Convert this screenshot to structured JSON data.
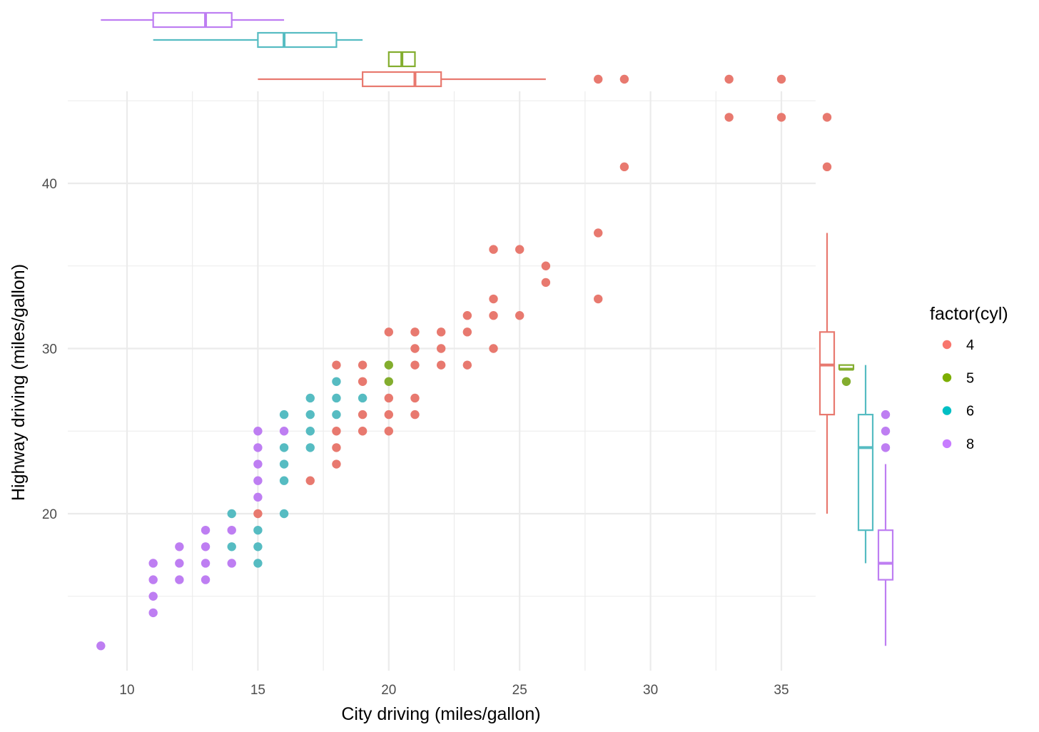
{
  "chart_data": {
    "type": "scatter",
    "title": "",
    "xlabel": "City driving (miles/gallon)",
    "ylabel": "Highway driving (miles/gallon)",
    "xlim": [
      8.7,
      36.3
    ],
    "ylim": [
      11.5,
      44.5
    ],
    "x_ticks": [
      10,
      15,
      20,
      25,
      30,
      35
    ],
    "y_ticks": [
      20,
      30,
      40
    ],
    "grid": true,
    "legend": {
      "title": "factor(cyl)",
      "position": "right",
      "entries": [
        {
          "label": "4",
          "color": "#F8766D"
        },
        {
          "label": "5",
          "color": "#7CAE00"
        },
        {
          "label": "6",
          "color": "#00BFC4"
        },
        {
          "label": "8",
          "color": "#C77CFF"
        }
      ]
    },
    "series": [
      {
        "name": "4",
        "color": "#E8796F",
        "points": [
          [
            15,
            20
          ],
          [
            17,
            22
          ],
          [
            18,
            23
          ],
          [
            18,
            24
          ],
          [
            18,
            25
          ],
          [
            18,
            29
          ],
          [
            19,
            25
          ],
          [
            19,
            26
          ],
          [
            19,
            28
          ],
          [
            19,
            29
          ],
          [
            20,
            25
          ],
          [
            20,
            26
          ],
          [
            20,
            27
          ],
          [
            20,
            31
          ],
          [
            21,
            26
          ],
          [
            21,
            27
          ],
          [
            21,
            29
          ],
          [
            21,
            30
          ],
          [
            21,
            31
          ],
          [
            22,
            29
          ],
          [
            22,
            30
          ],
          [
            22,
            31
          ],
          [
            23,
            29
          ],
          [
            23,
            31
          ],
          [
            23,
            32
          ],
          [
            24,
            30
          ],
          [
            24,
            32
          ],
          [
            24,
            33
          ],
          [
            24,
            36
          ],
          [
            25,
            32
          ],
          [
            25,
            36
          ],
          [
            26,
            34
          ],
          [
            26,
            35
          ],
          [
            28,
            33
          ],
          [
            28,
            37
          ],
          [
            29,
            41
          ],
          [
            33,
            44
          ],
          [
            35,
            44
          ]
        ]
      },
      {
        "name": "5",
        "color": "#83AD2E",
        "points": [
          [
            20,
            28
          ],
          [
            20,
            29
          ]
        ]
      },
      {
        "name": "6",
        "color": "#56BCC2",
        "points": [
          [
            14,
            18
          ],
          [
            14,
            20
          ],
          [
            15,
            17
          ],
          [
            15,
            18
          ],
          [
            15,
            19
          ],
          [
            16,
            20
          ],
          [
            16,
            22
          ],
          [
            16,
            23
          ],
          [
            16,
            24
          ],
          [
            16,
            26
          ],
          [
            17,
            24
          ],
          [
            17,
            25
          ],
          [
            17,
            26
          ],
          [
            17,
            27
          ],
          [
            18,
            26
          ],
          [
            18,
            27
          ],
          [
            18,
            28
          ],
          [
            19,
            27
          ]
        ]
      },
      {
        "name": "8",
        "color": "#BE7EF2",
        "points": [
          [
            9,
            12
          ],
          [
            11,
            14
          ],
          [
            11,
            15
          ],
          [
            11,
            16
          ],
          [
            11,
            17
          ],
          [
            12,
            16
          ],
          [
            12,
            17
          ],
          [
            12,
            18
          ],
          [
            13,
            16
          ],
          [
            13,
            17
          ],
          [
            13,
            18
          ],
          [
            13,
            19
          ],
          [
            14,
            17
          ],
          [
            14,
            19
          ],
          [
            15,
            21
          ],
          [
            15,
            22
          ],
          [
            15,
            23
          ],
          [
            15,
            24
          ],
          [
            15,
            25
          ],
          [
            16,
            25
          ]
        ]
      }
    ],
    "marginal_x_boxplots": [
      {
        "group": "8",
        "color": "#BE7EF2",
        "whisker_low": 9,
        "q1": 11,
        "median": 13,
        "q3": 14,
        "whisker_high": 16,
        "outliers": []
      },
      {
        "group": "6",
        "color": "#56BCC2",
        "whisker_low": 11,
        "q1": 15,
        "median": 16,
        "q3": 18,
        "whisker_high": 19,
        "outliers": []
      },
      {
        "group": "5",
        "color": "#83AD2E",
        "whisker_low": 20,
        "q1": 20,
        "median": 20.5,
        "q3": 21,
        "whisker_high": 21,
        "outliers": []
      },
      {
        "group": "4",
        "color": "#E8796F",
        "whisker_low": 15,
        "q1": 19,
        "median": 21,
        "q3": 22,
        "whisker_high": 26,
        "outliers": [
          28,
          29,
          33,
          35
        ]
      }
    ],
    "marginal_y_boxplots": [
      {
        "group": "4",
        "color": "#E8796F",
        "whisker_low": 20,
        "q1": 26,
        "median": 29,
        "q3": 31,
        "whisker_high": 37,
        "outliers": [
          41,
          44
        ]
      },
      {
        "group": "5",
        "color": "#83AD2E",
        "whisker_low": 29,
        "q1": 28.75,
        "median": 28.75,
        "q3": 29,
        "whisker_high": 29,
        "outliers": [
          28
        ]
      },
      {
        "group": "6",
        "color": "#56BCC2",
        "whisker_low": 17,
        "q1": 19,
        "median": 24,
        "q3": 26,
        "whisker_high": 29,
        "outliers": []
      },
      {
        "group": "8",
        "color": "#BE7EF2",
        "whisker_low": 12,
        "q1": 16,
        "median": 17,
        "q3": 19,
        "whisker_high": 23,
        "outliers": [
          24,
          25,
          26
        ]
      }
    ]
  }
}
